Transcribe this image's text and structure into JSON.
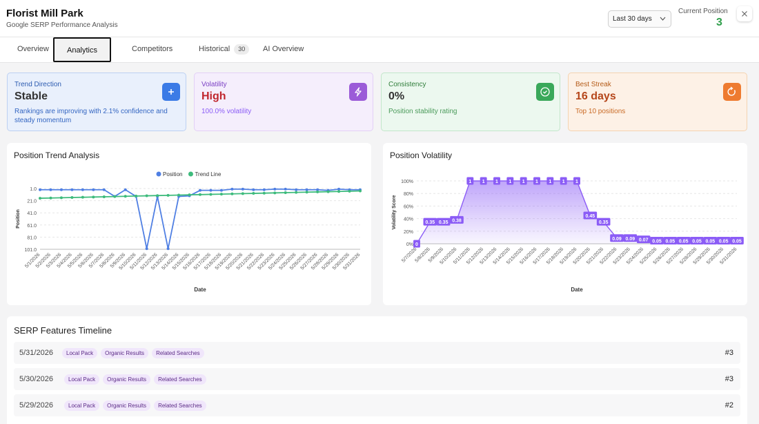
{
  "header": {
    "title": "Florist Mill Park",
    "subtitle": "Google SERP Performance Analysis",
    "date_range": "Last 30 days",
    "current_position_label": "Current Position",
    "current_position": 3
  },
  "tabs": [
    {
      "label": "Overview"
    },
    {
      "label": "Analytics",
      "active": true
    },
    {
      "label": "Competitors"
    },
    {
      "label": "Historical",
      "badge": 30
    },
    {
      "label": "AI Overview"
    }
  ],
  "cards": [
    {
      "label": "Trend Direction",
      "value": "Stable",
      "note": "Rankings are improving with 2.1% confidence and steady momentum"
    },
    {
      "label": "Volatility",
      "value": "High",
      "note": "100.0% volatility"
    },
    {
      "label": "Consistency",
      "value": "0%",
      "note": "Position stability rating"
    },
    {
      "label": "Best Streak",
      "value": "16 days",
      "note": "Top 10 positions"
    }
  ],
  "chart_data": [
    {
      "type": "line",
      "title": "Position Trend Analysis",
      "x_label": "Date",
      "y_label": "Position",
      "categories": [
        "5/1/2026",
        "5/2/2026",
        "5/3/2026",
        "5/4/2026",
        "5/5/2026",
        "5/6/2026",
        "5/7/2026",
        "5/8/2026",
        "5/9/2026",
        "5/10/2026",
        "5/11/2026",
        "5/12/2026",
        "5/13/2026",
        "5/14/2026",
        "5/15/2026",
        "5/16/2026",
        "5/17/2026",
        "5/18/2026",
        "5/19/2026",
        "5/20/2026",
        "5/21/2026",
        "5/22/2026",
        "5/23/2026",
        "5/24/2026",
        "5/25/2026",
        "5/26/2026",
        "5/27/2026",
        "5/28/2026",
        "5/29/2026",
        "5/30/2026",
        "5/31/2026"
      ],
      "series": [
        {
          "name": "Position",
          "color": "#4f7fe3",
          "values": [
            3,
            3,
            3,
            3,
            3,
            3,
            3,
            14,
            3,
            14,
            100,
            14,
            100,
            14,
            13,
            4,
            4,
            4,
            2,
            2,
            3,
            3,
            2,
            2,
            3,
            3,
            3,
            4,
            2,
            3,
            3
          ]
        },
        {
          "name": "Trend Line",
          "color": "#3dbb7c",
          "values": [
            17,
            16.6,
            16.2,
            15.8,
            15.4,
            15,
            14.6,
            14.2,
            13.8,
            13.4,
            13,
            12.6,
            12.2,
            11.8,
            11.4,
            11,
            10.6,
            10.2,
            9.8,
            9.4,
            9,
            8.6,
            8.2,
            7.8,
            7.4,
            7,
            6.6,
            6.2,
            5.8,
            5.4,
            5
          ]
        }
      ],
      "ylim": [
        1,
        101
      ],
      "y_reversed": true,
      "yticks": [
        {
          "value": 1,
          "label": "1.0"
        },
        {
          "value": 21,
          "label": "21.0"
        },
        {
          "value": 41,
          "label": "41.0"
        },
        {
          "value": 61,
          "label": "61.0"
        },
        {
          "value": 81,
          "label": "81.0"
        },
        {
          "value": 101,
          "label": "101.0"
        }
      ],
      "grid": true,
      "legend": "top"
    },
    {
      "type": "area",
      "title": "Position Volatility",
      "x_label": "Date",
      "y_label": "Volatility Score",
      "categories": [
        "5/7/2026",
        "5/8/2026",
        "5/9/2026",
        "5/10/2026",
        "5/11/2026",
        "5/12/2026",
        "5/13/2026",
        "5/14/2026",
        "5/15/2026",
        "5/16/2026",
        "5/17/2026",
        "5/18/2026",
        "5/19/2026",
        "5/20/2026",
        "5/21/2026",
        "5/22/2026",
        "5/23/2026",
        "5/24/2026",
        "5/25/2026",
        "5/26/2026",
        "5/27/2026",
        "5/28/2026",
        "5/29/2026",
        "5/30/2026",
        "5/31/2026"
      ],
      "values": [
        0,
        0.35,
        0.35,
        0.38,
        1,
        1,
        1,
        1,
        1,
        1,
        1,
        1,
        1,
        0.45,
        0.35,
        0.09,
        0.09,
        0.07,
        0.05,
        0.05,
        0.05,
        0.05,
        0.05,
        0.05,
        0.05
      ],
      "color": "#8b5cf6",
      "ylim": [
        0,
        1
      ],
      "yticks": [
        {
          "value": 0,
          "label": "0%"
        },
        {
          "value": 0.2,
          "label": "20%"
        },
        {
          "value": 0.4,
          "label": "40%"
        },
        {
          "value": 0.6,
          "label": "60%"
        },
        {
          "value": 0.8,
          "label": "80%"
        },
        {
          "value": 1,
          "label": "100%"
        }
      ],
      "grid": true,
      "data_labels": true
    }
  ],
  "serp_timeline": {
    "title": "SERP Features Timeline",
    "rows": [
      {
        "date": "5/31/2026",
        "features": [
          "Local Pack",
          "Organic Results",
          "Related Searches"
        ],
        "position": "#3"
      },
      {
        "date": "5/30/2026",
        "features": [
          "Local Pack",
          "Organic Results",
          "Related Searches"
        ],
        "position": "#3"
      },
      {
        "date": "5/29/2026",
        "features": [
          "Local Pack",
          "Organic Results",
          "Related Searches"
        ],
        "position": "#2"
      }
    ]
  }
}
